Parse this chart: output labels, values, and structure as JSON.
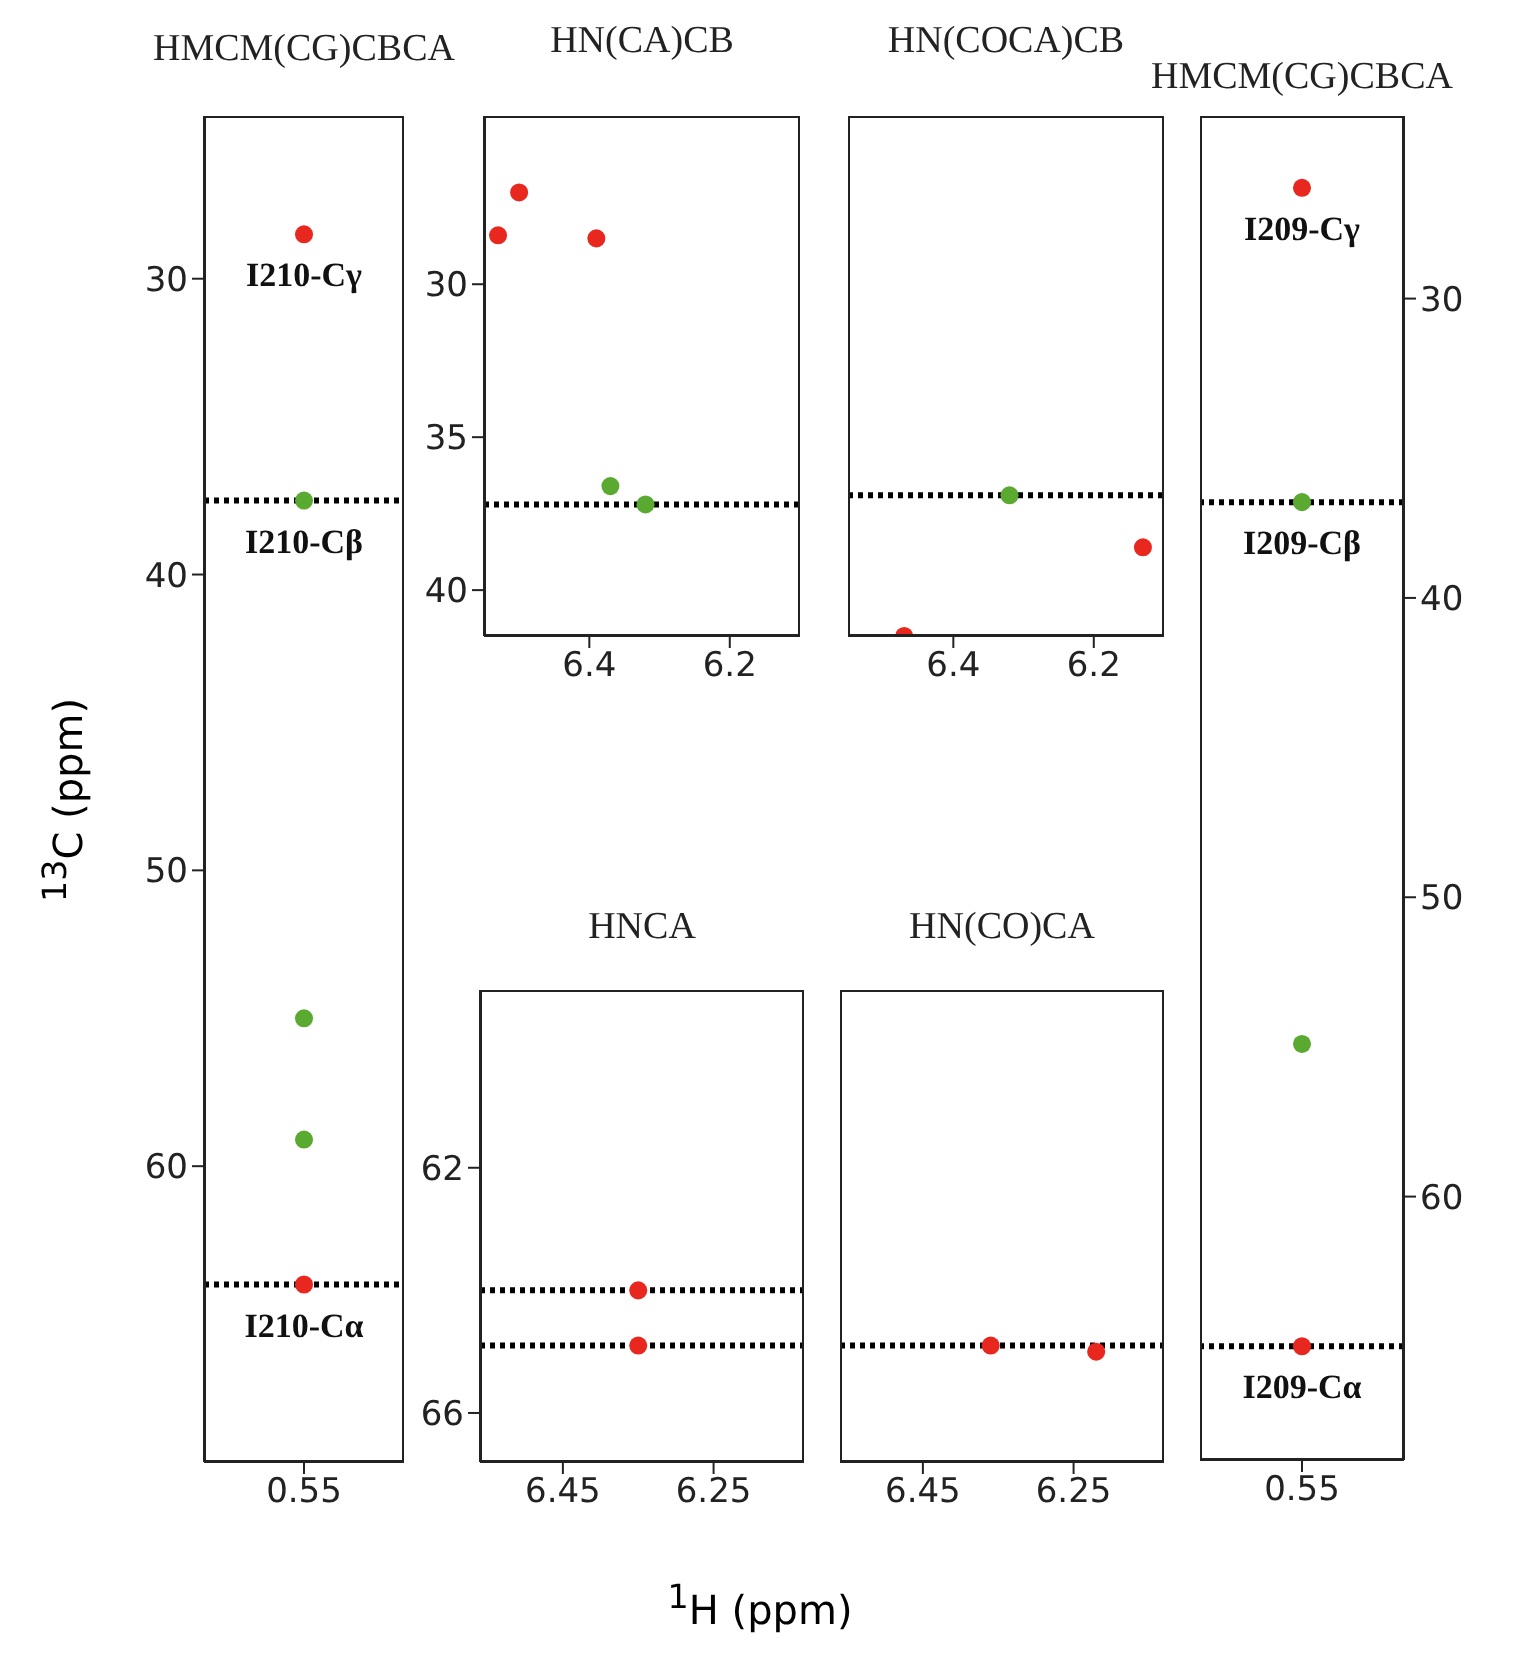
{
  "chart_data": [
    {
      "type": "scatter",
      "title": "HMCM(CG)CBCA",
      "ylabel": "$^{13}$C (ppm)",
      "marker": "circle",
      "categories": [
        "0.55"
      ],
      "ylim": [
        70,
        24.5
      ],
      "yticks": [
        30,
        40,
        50,
        60
      ],
      "series": [
        {
          "color": "#e8281e",
          "x": [
            "0.55",
            "0.55"
          ],
          "values": [
            28.5,
            64.0
          ]
        },
        {
          "color": "#5aaa32",
          "x": [
            "0.55",
            "0.55",
            "0.55"
          ],
          "values": [
            37.5,
            55.0,
            59.1
          ]
        }
      ],
      "annotations": [
        {
          "text": "I210-Cγ",
          "x": "0.55",
          "y": 28.5
        },
        {
          "text": "I210-Cβ",
          "x": "0.55",
          "y": 37.5
        },
        {
          "text": "I210-Cα",
          "x": "0.55",
          "y": 64.0
        }
      ],
      "ref_lines": [
        {
          "axis": "y",
          "value": 37.5,
          "color": "#000000",
          "line_style": "dotted"
        },
        {
          "axis": "y",
          "value": 64.0,
          "color": "#000000",
          "line_style": "dotted"
        }
      ]
    },
    {
      "type": "scatter",
      "title": "HN(CA)CB",
      "marker": "circle",
      "xlim": [
        6.55,
        6.1
      ],
      "xticks": [
        6.4,
        6.2
      ],
      "ylim": [
        41.5,
        24.5
      ],
      "yticks": [
        30,
        35,
        40
      ],
      "series": [
        {
          "color": "#e8281e",
          "x": [
            6.5,
            6.53,
            6.39
          ],
          "values": [
            27.0,
            28.4,
            28.5
          ]
        },
        {
          "color": "#5aaa32",
          "x": [
            6.32,
            6.37
          ],
          "values": [
            37.2,
            36.6
          ]
        }
      ],
      "ref_lines": [
        {
          "axis": "y",
          "value": 37.2,
          "color": "#000000",
          "line_style": "dotted"
        }
      ]
    },
    {
      "type": "scatter",
      "title": "HN(COCA)CB",
      "marker": "circle",
      "xlim": [
        6.55,
        6.1
      ],
      "xticks": [
        6.4,
        6.2
      ],
      "ylim": [
        41.5,
        24.5
      ],
      "tick_labels": "x",
      "series": [
        {
          "color": "#e8281e",
          "x": [
            6.13,
            6.47
          ],
          "values": [
            38.6,
            41.5
          ]
        },
        {
          "color": "#5aaa32",
          "x": [
            6.32
          ],
          "values": [
            36.9
          ]
        }
      ],
      "ref_lines": [
        {
          "axis": "y",
          "value": 36.9,
          "color": "#000000",
          "line_style": "dotted"
        }
      ]
    },
    {
      "type": "scatter",
      "title": "HNCA",
      "annotations": [
        "$^{1}$H (ppm)"
      ],
      "marker": "circle",
      "xlim": [
        6.56,
        6.13
      ],
      "xticks": [
        6.45,
        6.25
      ],
      "ylim": [
        66.8,
        59.1
      ],
      "yticks": [
        62,
        66
      ],
      "series": [
        {
          "color": "#e8281e",
          "x": [
            6.35,
            6.35
          ],
          "values": [
            64.0,
            64.9
          ]
        }
      ],
      "ref_lines": [
        {
          "axis": "y",
          "value": 64.0,
          "color": "#000000",
          "line_style": "dotted"
        },
        {
          "axis": "y",
          "value": 64.9,
          "color": "#000000",
          "line_style": "dotted"
        }
      ]
    },
    {
      "type": "scatter",
      "title": "HN(CO)CA",
      "marker": "circle",
      "xlim": [
        6.56,
        6.13
      ],
      "xticks": [
        6.45,
        6.25
      ],
      "ylim": [
        66.8,
        59.1
      ],
      "tick_labels": "x",
      "series": [
        {
          "color": "#e8281e",
          "x": [
            6.36,
            6.22
          ],
          "values": [
            64.9,
            65.0
          ]
        }
      ],
      "ref_lines": [
        {
          "axis": "y",
          "value": 64.9,
          "color": "#000000",
          "line_style": "dotted"
        }
      ]
    },
    {
      "type": "scatter",
      "title": "HMCM(CG)CBCA",
      "marker": "circle",
      "categories": [
        "0.55"
      ],
      "ylim": [
        68.8,
        23.9
      ],
      "yticks": [
        30,
        40,
        50,
        60
      ],
      "series": [
        {
          "color": "#e8281e",
          "x": [
            "0.55",
            "0.55"
          ],
          "values": [
            26.3,
            65.0
          ]
        },
        {
          "color": "#5aaa32",
          "x": [
            "0.55",
            "0.55"
          ],
          "values": [
            36.8,
            54.9
          ]
        }
      ],
      "annotations": [
        {
          "text": "I209-Cγ",
          "x": "0.55",
          "y": 26.3
        },
        {
          "text": "I209-Cβ",
          "x": "0.55",
          "y": 36.8
        },
        {
          "text": "I209-Cα",
          "x": "0.55",
          "y": 65.0
        }
      ],
      "ref_lines": [
        {
          "axis": "y",
          "value": 36.8,
          "color": "#000000",
          "line_style": "dotted"
        },
        {
          "axis": "y",
          "value": 65.0,
          "color": "#000000",
          "line_style": "dotted"
        }
      ]
    }
  ]
}
